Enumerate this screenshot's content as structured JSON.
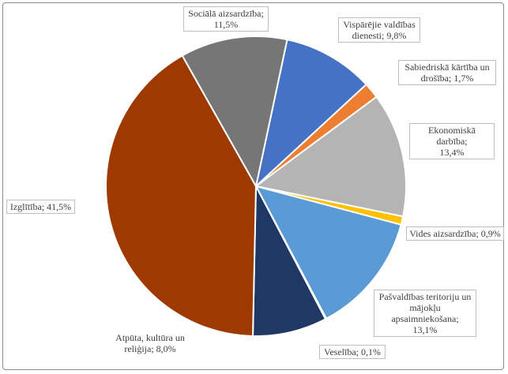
{
  "chart_data": {
    "type": "pie",
    "title": "",
    "slices": [
      {
        "label": "Vispārējie valdības\ndienesti; 9,8%",
        "value": 9.8,
        "color": "#4472c4"
      },
      {
        "label": "Sabiedriskā kārtība un\ndrošība; 1,7%",
        "value": 1.7,
        "color": "#ed7d31"
      },
      {
        "label": "Ekonomiskā darbība;\n13,4%",
        "value": 13.4,
        "color": "#b4b4b4"
      },
      {
        "label": "Vides aizsardzība; 0,9%",
        "value": 0.9,
        "color": "#ffc000"
      },
      {
        "label": "Pašvaldības teritoriju un\nmājokļu\napsaimniekošana;\n13,1%",
        "value": 13.1,
        "color": "#5b9bd5"
      },
      {
        "label": "Veselība; 0,1%",
        "value": 0.1,
        "color": "#70ad47"
      },
      {
        "label": "Atpūta, kultūra un\nreliģija; 8,0%",
        "value": 8.0,
        "color": "#1f3864"
      },
      {
        "label": "Izglītība; 41,5%",
        "value": 41.5,
        "color": "#9e3a00"
      },
      {
        "label": "Sociālā aizsardzība;\n11,5%",
        "value": 11.5,
        "color": "#767676"
      }
    ],
    "legend": "none",
    "start_angle_deg": 12
  }
}
